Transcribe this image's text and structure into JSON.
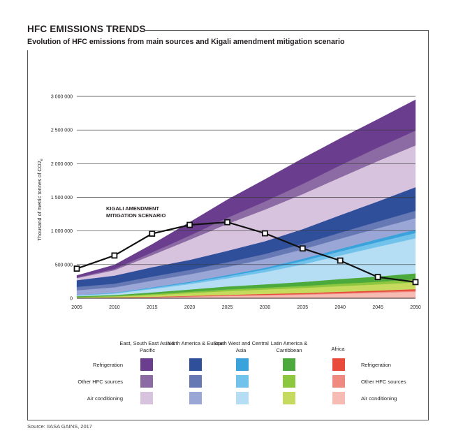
{
  "title": "HFC EMISSIONS TRENDS",
  "subtitle": "Evolution of HFC emissions from main sources and Kigali amendment mitigation scenario",
  "source": "Source: IIASA GAINS, 2017",
  "legend": {
    "regions": [
      "East, South East Asia & Pacific",
      "North America & Europe",
      "South West and Central Asia",
      "Latin America & Carribbean",
      "Africa"
    ],
    "row_labels": [
      "Refrigeration",
      "Other HFC sources",
      "Air conditioning"
    ],
    "colors": [
      [
        "#6a3d8e",
        "#8c6aa3",
        "#d8c3df"
      ],
      [
        "#2f4f9a",
        "#6779b5",
        "#9aa7d6"
      ],
      [
        "#3aa3dc",
        "#72c3ec",
        "#b5def4"
      ],
      [
        "#4caa3c",
        "#8dc63f",
        "#c6db5e"
      ],
      [
        "#e84a3c",
        "#ef8a80",
        "#f6bbb3"
      ]
    ]
  },
  "chart_data": {
    "type": "area",
    "title": "",
    "xlabel": "",
    "ylabel": "Thousand of metric tonnes of CO2e",
    "x": [
      2005,
      2010,
      2015,
      2020,
      2025,
      2030,
      2035,
      2040,
      2045,
      2050
    ],
    "ylim": [
      0,
      3000000
    ],
    "yticks": [
      0,
      500000,
      1000000,
      1500000,
      2000000,
      2500000,
      3000000
    ],
    "ytick_labels": [
      "0",
      "500 000",
      "1 000 000",
      "1 500 000",
      "2 000 000",
      "2 500 000",
      "3 000 000"
    ],
    "series": [
      {
        "name": "Africa - Air conditioning",
        "color": "#f6bbb3",
        "values": [
          2000,
          5000,
          12000,
          22000,
          32000,
          42000,
          52000,
          65000,
          80000,
          95000
        ]
      },
      {
        "name": "Africa - Other HFC sources",
        "color": "#ef8a80",
        "values": [
          1000,
          2000,
          4000,
          6000,
          8000,
          9000,
          10000,
          12000,
          14000,
          15000
        ]
      },
      {
        "name": "Africa - Refrigeration",
        "color": "#e84a3c",
        "values": [
          2000,
          3000,
          5000,
          7000,
          10000,
          13000,
          15000,
          18000,
          20000,
          25000
        ]
      },
      {
        "name": "Latin America & Carribbean - Air conditioning",
        "color": "#c6db5e",
        "values": [
          10000,
          15000,
          25000,
          40000,
          55000,
          65000,
          75000,
          85000,
          90000,
          100000
        ]
      },
      {
        "name": "Latin America & Carribbean - Other HFC sources",
        "color": "#8dc63f",
        "values": [
          5000,
          8000,
          15000,
          20000,
          25000,
          28000,
          30000,
          35000,
          40000,
          45000
        ]
      },
      {
        "name": "Latin America & Carribbean - Refrigeration",
        "color": "#4caa3c",
        "values": [
          10000,
          15000,
          25000,
          35000,
          45000,
          50000,
          60000,
          70000,
          80000,
          90000
        ]
      },
      {
        "name": "South West and Central Asia - Air conditioning",
        "color": "#b5def4",
        "values": [
          10000,
          20000,
          50000,
          80000,
          120000,
          180000,
          260000,
          350000,
          440000,
          520000
        ]
      },
      {
        "name": "South West and Central Asia - Other HFC sources",
        "color": "#72c3ec",
        "values": [
          5000,
          8000,
          15000,
          20000,
          30000,
          40000,
          50000,
          60000,
          70000,
          80000
        ]
      },
      {
        "name": "South West and Central Asia - Refrigeration",
        "color": "#3aa3dc",
        "values": [
          3000,
          5000,
          10000,
          15000,
          20000,
          25000,
          35000,
          40000,
          45000,
          50000
        ]
      },
      {
        "name": "North America & Europe - Air conditioning",
        "color": "#9aa7d6",
        "values": [
          70000,
          80000,
          100000,
          110000,
          120000,
          130000,
          140000,
          150000,
          160000,
          170000
        ]
      },
      {
        "name": "North America & Europe - Other HFC sources",
        "color": "#6779b5",
        "values": [
          50000,
          55000,
          60000,
          65000,
          70000,
          75000,
          80000,
          90000,
          100000,
          110000
        ]
      },
      {
        "name": "North America & Europe - Refrigeration",
        "color": "#2f4f9a",
        "values": [
          100000,
          120000,
          140000,
          150000,
          170000,
          190000,
          220000,
          260000,
          300000,
          350000
        ]
      },
      {
        "name": "East, South East Asia & Pacific - Air conditioning",
        "color": "#d8c3df",
        "values": [
          30000,
          80000,
          180000,
          300000,
          400000,
          470000,
          520000,
          560000,
          600000,
          620000
        ]
      },
      {
        "name": "East, South East Asia & Pacific - Other HFC sources",
        "color": "#8c6aa3",
        "values": [
          10000,
          20000,
          40000,
          60000,
          90000,
          120000,
          150000,
          180000,
          200000,
          220000
        ]
      },
      {
        "name": "East, South East Asia & Pacific - Refrigeration",
        "color": "#6a3d8e",
        "values": [
          30000,
          60000,
          120000,
          200000,
          270000,
          330000,
          380000,
          400000,
          420000,
          460000
        ]
      }
    ],
    "mitigation": {
      "name": "Kigali amendment mitigation scenario",
      "label_lines": [
        "KIGALI AMENDMENT",
        "MITIGATION SCENARIO"
      ],
      "values": [
        440000,
        635000,
        960000,
        1090000,
        1130000,
        965000,
        740000,
        560000,
        315000,
        240000
      ]
    }
  }
}
